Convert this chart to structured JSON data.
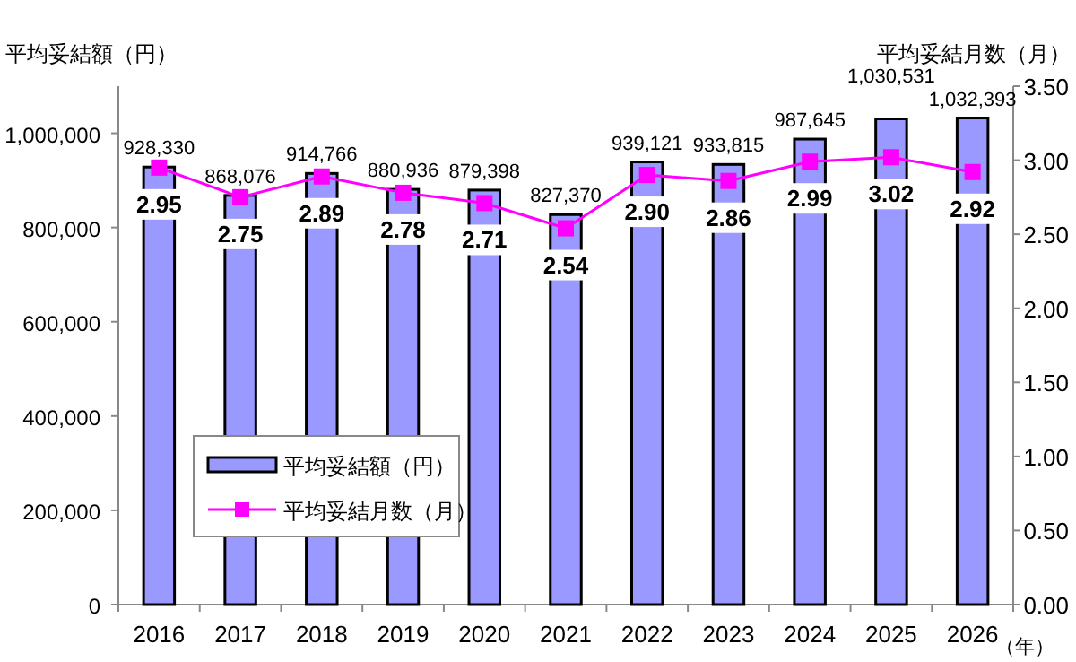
{
  "chart_data": {
    "type": "bar",
    "ylabel": "平均妥結額（円）",
    "y2label": "平均妥結月数（月）",
    "xlabel": "（年）",
    "categories": [
      "2016",
      "2017",
      "2018",
      "2019",
      "2020",
      "2021",
      "2022",
      "2023",
      "2024",
      "2025",
      "2026"
    ],
    "series": [
      {
        "name": "平均妥結額（円）",
        "axis": "y",
        "color": "#9999ff",
        "values": [
          928330,
          868076,
          914766,
          880936,
          879398,
          827370,
          939121,
          933815,
          987645,
          1030531,
          1032393
        ],
        "value_labels": [
          "928,330",
          "868,076",
          "914,766",
          "880,936",
          "879,398",
          "827,370",
          "939,121",
          "933,815",
          "987,645",
          "1,030,531",
          "1,032,393"
        ]
      },
      {
        "name": "平均妥結月数（月）",
        "type": "line",
        "axis": "y2",
        "color": "#ff00ff",
        "marker": "square",
        "values": [
          2.95,
          2.75,
          2.89,
          2.78,
          2.71,
          2.54,
          2.9,
          2.86,
          2.99,
          3.02,
          2.92
        ],
        "value_labels": [
          "2.95",
          "2.75",
          "2.89",
          "2.78",
          "2.71",
          "2.54",
          "2.90",
          "2.86",
          "2.99",
          "3.02",
          "2.92"
        ]
      }
    ],
    "ylim": [
      0,
      1100000
    ],
    "yticks": [
      0,
      {
        "value": 200000,
        "label": "200,000"
      },
      {
        "value": 400000,
        "label": "400,000"
      },
      {
        "value": 600000,
        "label": "600,000"
      },
      {
        "value": 800000,
        "label": "800,000"
      },
      {
        "value": 1000000,
        "label": "1,000,000"
      }
    ],
    "y2lim": [
      0,
      3.5
    ],
    "y2ticks": [
      {
        "value": 0,
        "label": "0.00"
      },
      {
        "value": 0.5,
        "label": "0.50"
      },
      {
        "value": 1,
        "label": "1.00"
      },
      {
        "value": 1.5,
        "label": "1.50"
      },
      {
        "value": 2,
        "label": "2.00"
      },
      {
        "value": 2.5,
        "label": "2.50"
      },
      {
        "value": 3,
        "label": "3.00"
      },
      {
        "value": 3.5,
        "label": "3.50"
      }
    ],
    "grid": false,
    "legend": "bottom left"
  }
}
